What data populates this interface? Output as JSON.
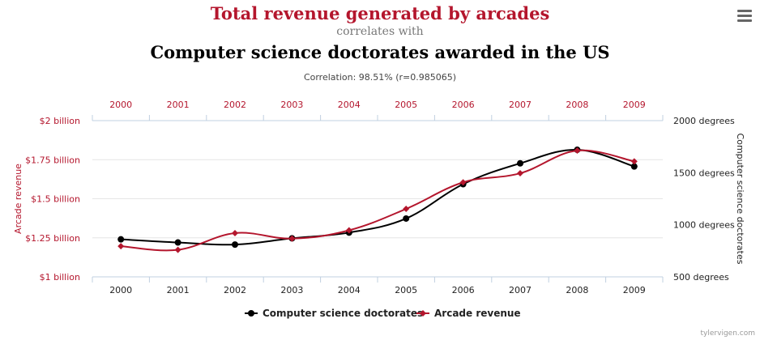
{
  "header": {
    "title_1": "Total revenue generated by arcades",
    "connector": "correlates with",
    "title_2": "Computer science doctorates awarded in the US",
    "correlation": "Correlation: 98.51% (r=0.985065)"
  },
  "menu_icon": "hamburger-menu-icon",
  "credit": "tylervigen.com",
  "colors": {
    "accent": "#b4162d",
    "series_black": "#000000",
    "grid": "#e6e6e6",
    "axis": "#c0d0e0"
  },
  "chart_data": {
    "type": "line",
    "categories": [
      "2000",
      "2001",
      "2002",
      "2003",
      "2004",
      "2005",
      "2006",
      "2007",
      "2008",
      "2009"
    ],
    "series": [
      {
        "name": "Computer science doctorates",
        "axis": "right",
        "values": [
          860,
          830,
          810,
          870,
          925,
          1060,
          1390,
          1590,
          1720,
          1560
        ]
      },
      {
        "name": "Arcade revenue",
        "axis": "left",
        "values": [
          1.196,
          1.173,
          1.28,
          1.245,
          1.298,
          1.435,
          1.605,
          1.663,
          1.808,
          1.739
        ]
      }
    ],
    "left_axis": {
      "label": "Arcade revenue",
      "ticks": [
        "$1 billion",
        "$1.25 billion",
        "$1.5 billion",
        "$1.75 billion",
        "$2 billion"
      ],
      "ylim": [
        1,
        2
      ]
    },
    "right_axis": {
      "label": "Computer science doctorates",
      "ticks": [
        "500 degrees",
        "1000 degrees",
        "1500 degrees",
        "2000 degrees"
      ],
      "ylim": [
        500,
        2000
      ]
    },
    "legend": [
      "Computer science doctorates",
      "Arcade revenue"
    ],
    "legend_position": "bottom-center"
  }
}
